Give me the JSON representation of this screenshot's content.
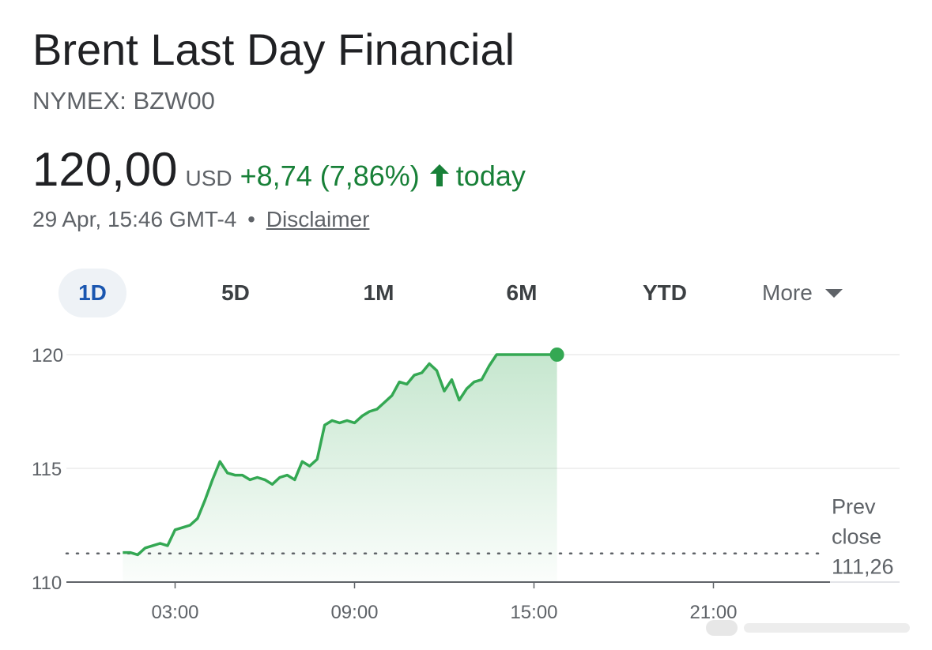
{
  "header": {
    "title": "Brent Last Day Financial",
    "ticker": "NYMEX: BZW00"
  },
  "quote": {
    "price": "120,00",
    "currency": "USD",
    "change": "+8,74 (7,86%)",
    "period": "today",
    "direction_icon": "arrow-up-icon",
    "timestamp": "29 Apr, 15:46 GMT-4",
    "separator": "•",
    "disclaimer": "Disclaimer"
  },
  "ranges": {
    "items": [
      "1D",
      "5D",
      "1M",
      "6M",
      "YTD"
    ],
    "active": "1D",
    "more_label": "More",
    "more_icon": "caret-down-icon"
  },
  "colors": {
    "positive": "#188038",
    "line": "#34a853",
    "active_tab": "#1a56b0"
  },
  "chart_data": {
    "type": "area",
    "ylim": [
      110,
      120
    ],
    "y_ticks": [
      120,
      115,
      110
    ],
    "x_ticks": [
      "03:00",
      "09:00",
      "15:00",
      "21:00"
    ],
    "xlim_hours": [
      0,
      24
    ],
    "prev_close_label": "Prev close",
    "prev_close": "111,26",
    "prev_close_value": 111.26,
    "series": [
      {
        "x": [
          1.25,
          1.5,
          1.75,
          2,
          2.25,
          2.5,
          2.75,
          3,
          3.25,
          3.5,
          3.75,
          4,
          4.25,
          4.5,
          4.75,
          5,
          5.25,
          5.5,
          5.75,
          6,
          6.25,
          6.5,
          6.75,
          7,
          7.25,
          7.5,
          7.75,
          8,
          8.25,
          8.5,
          8.75,
          9,
          9.25,
          9.5,
          9.75,
          10,
          10.25,
          10.5,
          10.75,
          11,
          11.25,
          11.5,
          11.75,
          12,
          12.25,
          12.5,
          12.75,
          13,
          13.25,
          13.5,
          13.75,
          14,
          14.25,
          14.5,
          14.75,
          15,
          15.25,
          15.5,
          15.77
        ],
        "values": [
          111.3,
          111.3,
          111.2,
          111.5,
          111.6,
          111.7,
          111.6,
          112.3,
          112.4,
          112.5,
          112.8,
          113.6,
          114.5,
          115.3,
          114.8,
          114.7,
          114.7,
          114.5,
          114.6,
          114.5,
          114.3,
          114.6,
          114.7,
          114.5,
          115.3,
          115.1,
          115.4,
          116.9,
          117.1,
          117.0,
          117.1,
          117.0,
          117.3,
          117.5,
          117.6,
          117.9,
          118.2,
          118.8,
          118.7,
          119.1,
          119.2,
          119.6,
          119.3,
          118.4,
          118.9,
          118.0,
          118.5,
          118.8,
          118.9,
          119.5,
          120.0,
          120.0,
          120.0,
          120.0,
          120.0,
          120.0,
          120.0,
          120.0,
          120.0
        ]
      }
    ]
  }
}
